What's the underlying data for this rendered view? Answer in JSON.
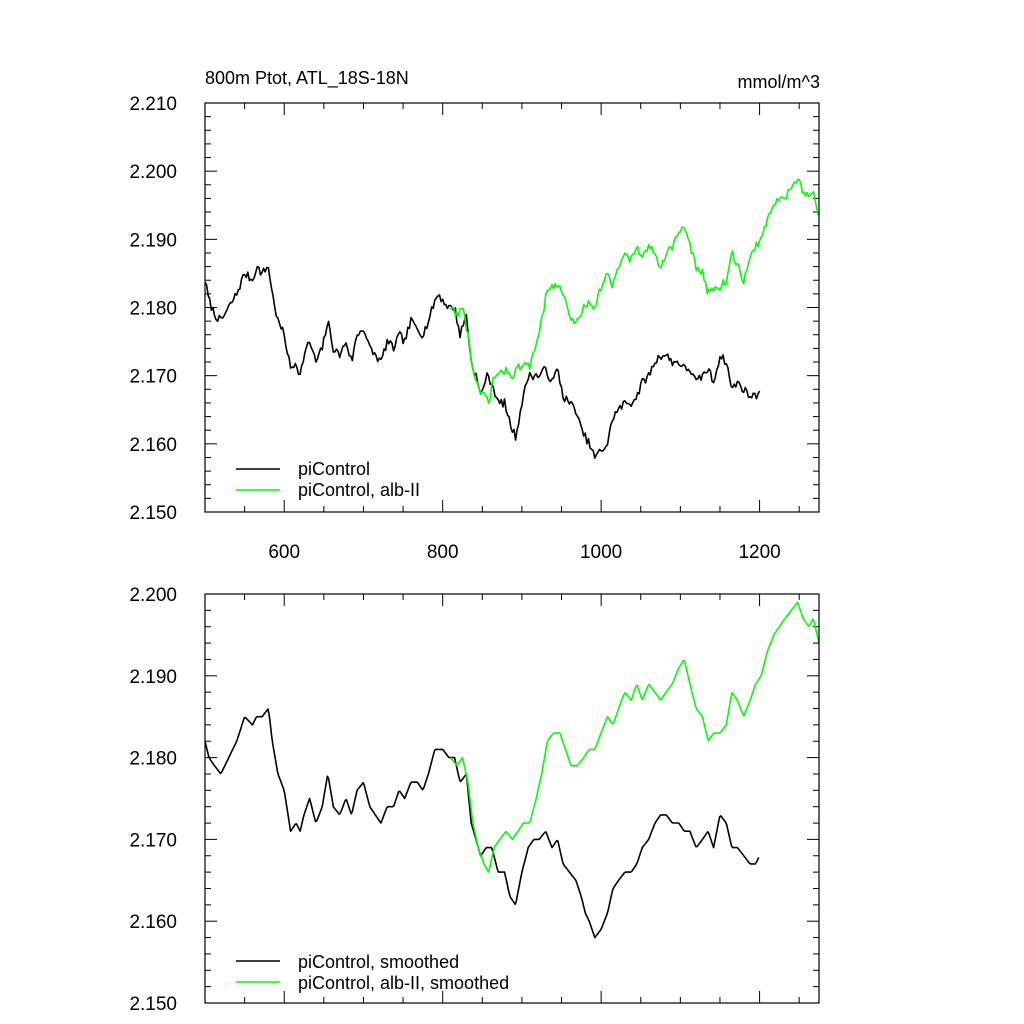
{
  "chart_data": [
    {
      "type": "line",
      "title": "800m Ptot, ATL_18S-18N",
      "units": "mmol/m^3",
      "xlim": [
        500,
        1275
      ],
      "ylim": [
        2.15,
        2.21
      ],
      "xticks": [
        600,
        800,
        1000,
        1200
      ],
      "xtick_labels": [
        "600",
        "800",
        "1000",
        "1200"
      ],
      "yticks": [
        2.15,
        2.16,
        2.17,
        2.18,
        2.19,
        2.2,
        2.21
      ],
      "ytick_labels": [
        "2.150",
        "2.160",
        "2.170",
        "2.180",
        "2.190",
        "2.200",
        "2.210"
      ],
      "legend_position": "bottom-left",
      "grid": false,
      "series": [
        {
          "name": "piControl",
          "color": "#000000",
          "noise": 0.0012,
          "x": [
            500,
            505,
            512,
            520,
            530,
            540,
            550,
            560,
            565,
            572,
            580,
            585,
            592,
            600,
            608,
            615,
            620,
            625,
            632,
            640,
            648,
            655,
            662,
            670,
            678,
            685,
            692,
            700,
            708,
            715,
            722,
            730,
            738,
            745,
            752,
            760,
            768,
            775,
            782,
            790,
            795,
            800,
            808,
            815,
            822,
            830,
            836,
            842,
            848,
            855,
            862,
            870,
            878,
            885,
            892,
            900,
            908,
            915,
            922,
            930,
            938,
            945,
            952,
            960,
            968,
            975,
            980,
            985,
            992,
            1000,
            1008,
            1015,
            1022,
            1030,
            1038,
            1045,
            1052,
            1060,
            1068,
            1075,
            1082,
            1090,
            1098,
            1105,
            1112,
            1120,
            1128,
            1135,
            1142,
            1150,
            1158,
            1165,
            1172,
            1180,
            1188,
            1195,
            1200
          ],
          "y": [
            2.184,
            2.181,
            2.179,
            2.178,
            2.18,
            2.182,
            2.185,
            2.184,
            2.186,
            2.185,
            2.186,
            2.182,
            2.178,
            2.176,
            2.171,
            2.172,
            2.17,
            2.173,
            2.175,
            2.172,
            2.174,
            2.178,
            2.174,
            2.173,
            2.175,
            2.172,
            2.176,
            2.177,
            2.174,
            2.173,
            2.172,
            2.175,
            2.174,
            2.176,
            2.175,
            2.178,
            2.177,
            2.176,
            2.178,
            2.181,
            2.182,
            2.181,
            2.18,
            2.18,
            2.176,
            2.179,
            2.172,
            2.17,
            2.167,
            2.17,
            2.169,
            2.166,
            2.166,
            2.163,
            2.161,
            2.166,
            2.17,
            2.17,
            2.17,
            2.171,
            2.169,
            2.171,
            2.167,
            2.166,
            2.165,
            2.162,
            2.161,
            2.16,
            2.158,
            2.159,
            2.16,
            2.164,
            2.165,
            2.166,
            2.166,
            2.167,
            2.169,
            2.17,
            2.172,
            2.173,
            2.173,
            2.172,
            2.172,
            2.171,
            2.171,
            2.169,
            2.17,
            2.171,
            2.169,
            2.173,
            2.172,
            2.168,
            2.169,
            2.168,
            2.167,
            2.167,
            2.168
          ]
        },
        {
          "name": "piControl, alb-II",
          "color": "#00ff00",
          "noise": 0.0012,
          "x": [
            810,
            818,
            825,
            832,
            838,
            845,
            852,
            858,
            865,
            872,
            880,
            888,
            895,
            902,
            910,
            918,
            925,
            932,
            940,
            948,
            955,
            962,
            970,
            978,
            985,
            992,
            1000,
            1008,
            1015,
            1022,
            1030,
            1038,
            1045,
            1052,
            1060,
            1068,
            1075,
            1082,
            1090,
            1098,
            1105,
            1112,
            1120,
            1128,
            1135,
            1142,
            1150,
            1158,
            1165,
            1172,
            1180,
            1188,
            1195,
            1202,
            1210,
            1218,
            1225,
            1232,
            1240,
            1248,
            1255,
            1262,
            1268,
            1275
          ],
          "y": [
            2.18,
            2.179,
            2.18,
            2.176,
            2.171,
            2.168,
            2.167,
            2.166,
            2.17,
            2.17,
            2.171,
            2.17,
            2.171,
            2.172,
            2.171,
            2.175,
            2.178,
            2.183,
            2.183,
            2.183,
            2.181,
            2.178,
            2.178,
            2.18,
            2.181,
            2.18,
            2.183,
            2.185,
            2.183,
            2.186,
            2.188,
            2.187,
            2.189,
            2.187,
            2.189,
            2.188,
            2.186,
            2.188,
            2.189,
            2.191,
            2.192,
            2.189,
            2.186,
            2.185,
            2.182,
            2.183,
            2.183,
            2.184,
            2.188,
            2.186,
            2.184,
            2.187,
            2.189,
            2.19,
            2.193,
            2.195,
            2.196,
            2.196,
            2.198,
            2.199,
            2.197,
            2.196,
            2.197,
            2.193
          ]
        }
      ]
    },
    {
      "type": "line",
      "xlim": [
        500,
        1275
      ],
      "ylim": [
        2.15,
        2.2
      ],
      "xticks": [
        600,
        800,
        1000,
        1200
      ],
      "yticks": [
        2.15,
        2.16,
        2.17,
        2.18,
        2.19,
        2.2
      ],
      "ytick_labels": [
        "2.150",
        "2.160",
        "2.170",
        "2.180",
        "2.190",
        "2.200"
      ],
      "legend_position": "bottom-left",
      "grid": false,
      "series": [
        {
          "name": "piControl, smoothed",
          "color": "#000000",
          "noise": 0,
          "x": [
            500,
            505,
            512,
            520,
            530,
            540,
            550,
            560,
            565,
            572,
            580,
            585,
            592,
            600,
            608,
            615,
            620,
            625,
            632,
            640,
            648,
            655,
            662,
            670,
            678,
            685,
            692,
            700,
            708,
            715,
            722,
            730,
            738,
            745,
            752,
            760,
            768,
            775,
            782,
            790,
            795,
            800,
            808,
            815,
            822,
            830,
            836,
            842,
            848,
            855,
            862,
            870,
            878,
            885,
            892,
            900,
            908,
            915,
            922,
            930,
            938,
            945,
            952,
            960,
            968,
            975,
            980,
            985,
            992,
            1000,
            1008,
            1015,
            1022,
            1030,
            1038,
            1045,
            1052,
            1060,
            1068,
            1075,
            1082,
            1090,
            1098,
            1105,
            1112,
            1120,
            1128,
            1135,
            1142,
            1150,
            1158,
            1165,
            1172,
            1180,
            1188,
            1195,
            1200
          ],
          "y": [
            2.182,
            2.18,
            2.179,
            2.178,
            2.18,
            2.182,
            2.185,
            2.184,
            2.185,
            2.185,
            2.186,
            2.182,
            2.178,
            2.176,
            2.171,
            2.172,
            2.171,
            2.173,
            2.175,
            2.172,
            2.174,
            2.178,
            2.174,
            2.173,
            2.175,
            2.173,
            2.176,
            2.177,
            2.174,
            2.173,
            2.172,
            2.174,
            2.174,
            2.176,
            2.175,
            2.177,
            2.177,
            2.176,
            2.178,
            2.181,
            2.181,
            2.181,
            2.18,
            2.18,
            2.177,
            2.178,
            2.172,
            2.17,
            2.168,
            2.169,
            2.169,
            2.166,
            2.166,
            2.163,
            2.162,
            2.166,
            2.169,
            2.17,
            2.17,
            2.171,
            2.169,
            2.17,
            2.167,
            2.166,
            2.165,
            2.163,
            2.161,
            2.16,
            2.158,
            2.159,
            2.161,
            2.164,
            2.165,
            2.166,
            2.166,
            2.167,
            2.169,
            2.17,
            2.172,
            2.173,
            2.173,
            2.172,
            2.172,
            2.171,
            2.171,
            2.169,
            2.17,
            2.171,
            2.169,
            2.173,
            2.172,
            2.169,
            2.169,
            2.168,
            2.167,
            2.167,
            2.168
          ]
        },
        {
          "name": "piControl, alb-II, smoothed",
          "color": "#00ff00",
          "noise": 0,
          "x": [
            810,
            818,
            825,
            832,
            838,
            845,
            852,
            858,
            865,
            872,
            880,
            888,
            895,
            902,
            910,
            918,
            925,
            932,
            940,
            948,
            955,
            962,
            970,
            978,
            985,
            992,
            1000,
            1008,
            1015,
            1022,
            1030,
            1038,
            1045,
            1052,
            1060,
            1068,
            1075,
            1082,
            1090,
            1098,
            1105,
            1112,
            1120,
            1128,
            1135,
            1142,
            1150,
            1158,
            1165,
            1172,
            1180,
            1188,
            1195,
            1202,
            1210,
            1218,
            1225,
            1232,
            1240,
            1248,
            1255,
            1262,
            1268,
            1275
          ],
          "y": [
            2.18,
            2.179,
            2.18,
            2.177,
            2.172,
            2.169,
            2.167,
            2.166,
            2.169,
            2.17,
            2.171,
            2.17,
            2.171,
            2.172,
            2.172,
            2.175,
            2.178,
            2.182,
            2.183,
            2.183,
            2.181,
            2.179,
            2.179,
            2.18,
            2.181,
            2.181,
            2.183,
            2.185,
            2.184,
            2.186,
            2.188,
            2.187,
            2.189,
            2.187,
            2.189,
            2.188,
            2.187,
            2.188,
            2.189,
            2.191,
            2.192,
            2.189,
            2.186,
            2.185,
            2.182,
            2.183,
            2.183,
            2.184,
            2.188,
            2.187,
            2.185,
            2.187,
            2.189,
            2.19,
            2.193,
            2.195,
            2.196,
            2.197,
            2.198,
            2.199,
            2.197,
            2.196,
            2.197,
            2.194
          ]
        }
      ]
    }
  ]
}
